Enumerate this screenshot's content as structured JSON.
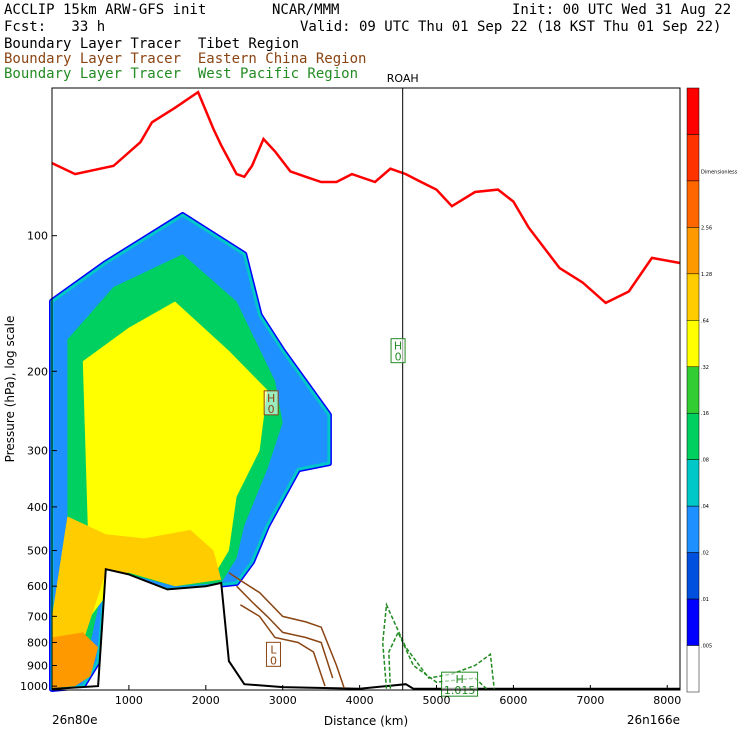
{
  "header": {
    "model": "ACCLIP 15km ARW-GFS init",
    "org": "NCAR/MMM",
    "init": "Init: 00 UTC Wed 31 Aug 22",
    "fcst": "Fcst:   33 h",
    "valid": "Valid: 09 UTC Thu 01 Sep 22 (18 KST Thu 01 Sep 22)"
  },
  "chart_data": {
    "type": "area",
    "title": "Boundary Layer Tracer Tibet Region / Eastern China Region / West Pacific Region",
    "series": [
      {
        "name": "Boundary Layer Tracer  Tibet Region",
        "color": "#000000",
        "style": "shaded"
      },
      {
        "name": "Boundary Layer Tracer  Eastern China Region",
        "color": "#8b4513",
        "style": "contour"
      },
      {
        "name": "Boundary Layer Tracer  West Pacific Region",
        "color": "#228b22",
        "style": "dashed contour"
      }
    ],
    "xlabel": "Distance (km)",
    "ylabel": "Pressure (hPa), log scale",
    "x_ticks": [
      "1000",
      "2000",
      "3000",
      "4000",
      "5000",
      "6000",
      "7000",
      "8000"
    ],
    "y_ticks": [
      "100",
      "200",
      "300",
      "400",
      "500",
      "600",
      "700",
      "800",
      "900",
      "1000"
    ],
    "xlim": [
      0,
      8166
    ],
    "ylim": [
      1020,
      47
    ],
    "x_end_labels": {
      "left": "26n80e",
      "right": "26n166e"
    },
    "marker_label": "ROAH",
    "marker_x": 4560,
    "colorbar": {
      "labels": [
        ".005",
        ".01",
        ".02",
        ".04",
        ".08",
        ".16",
        ".32",
        ".64",
        "1.28",
        "2.56",
        "Dimensionless"
      ],
      "colors": [
        "#ffffff",
        "#0000ff",
        "#0050e0",
        "#1e90ff",
        "#00c8c8",
        "#00d060",
        "#32cd32",
        "#ffff00",
        "#ffcc00",
        "#ff9900",
        "#ff6600",
        "#ff3300",
        "#ff0000"
      ]
    },
    "tropopause_color": "#ff0000",
    "surface_color": "#000000",
    "tropopause_hpa": [
      [
        0,
        69
      ],
      [
        300,
        73
      ],
      [
        800,
        70
      ],
      [
        1150,
        62
      ],
      [
        1300,
        56
      ],
      [
        1600,
        52
      ],
      [
        1900,
        48
      ],
      [
        2100,
        58
      ],
      [
        2200,
        63
      ],
      [
        2400,
        73
      ],
      [
        2500,
        74
      ],
      [
        2600,
        70
      ],
      [
        2750,
        61
      ],
      [
        2900,
        65
      ],
      [
        3100,
        72
      ],
      [
        3300,
        74
      ],
      [
        3500,
        76
      ],
      [
        3700,
        76
      ],
      [
        3900,
        73
      ],
      [
        4200,
        76
      ],
      [
        4400,
        71
      ],
      [
        4600,
        73
      ],
      [
        4800,
        76
      ],
      [
        5000,
        79
      ],
      [
        5200,
        86
      ],
      [
        5500,
        80
      ],
      [
        5800,
        79
      ],
      [
        6000,
        84
      ],
      [
        6200,
        96
      ],
      [
        6600,
        118
      ],
      [
        6900,
        127
      ],
      [
        7200,
        141
      ],
      [
        7500,
        133
      ],
      [
        7800,
        112
      ],
      [
        8166,
        115
      ]
    ],
    "surface_hpa": [
      [
        0,
        1015
      ],
      [
        600,
        1000
      ],
      [
        700,
        550
      ],
      [
        1000,
        565
      ],
      [
        1500,
        610
      ],
      [
        2000,
        600
      ],
      [
        2200,
        590
      ],
      [
        2300,
        880
      ],
      [
        2500,
        990
      ],
      [
        3000,
        1005
      ],
      [
        4000,
        1013
      ],
      [
        4600,
        990
      ],
      [
        4700,
        1013
      ],
      [
        8166,
        1013
      ]
    ],
    "tracer_zones": [
      {
        "level": 0.08,
        "points": [
          [
            0,
            140
          ],
          [
            700,
            115
          ],
          [
            1700,
            90
          ],
          [
            2500,
            110
          ],
          [
            2700,
            150
          ],
          [
            3000,
            180
          ],
          [
            3600,
            250
          ],
          [
            3600,
            320
          ],
          [
            3200,
            330
          ],
          [
            2800,
            440
          ],
          [
            2600,
            530
          ],
          [
            2400,
            590
          ],
          [
            2000,
            600
          ],
          [
            1500,
            610
          ],
          [
            1000,
            570
          ],
          [
            700,
            560
          ],
          [
            600,
            880
          ],
          [
            400,
            1000
          ],
          [
            0,
            1015
          ]
        ]
      },
      {
        "level": 0.16,
        "points": [
          [
            200,
            170
          ],
          [
            800,
            130
          ],
          [
            1700,
            110
          ],
          [
            2400,
            140
          ],
          [
            2900,
            210
          ],
          [
            3000,
            260
          ],
          [
            2800,
            330
          ],
          [
            2500,
            440
          ],
          [
            2400,
            520
          ],
          [
            2200,
            590
          ],
          [
            1600,
            600
          ],
          [
            1000,
            565
          ],
          [
            700,
            560
          ],
          [
            500,
            800
          ],
          [
            200,
            900
          ]
        ]
      },
      {
        "level": 0.32,
        "points": [
          [
            400,
            190
          ],
          [
            1000,
            160
          ],
          [
            1600,
            140
          ],
          [
            2300,
            180
          ],
          [
            2800,
            220
          ],
          [
            2700,
            300
          ],
          [
            2400,
            380
          ],
          [
            2300,
            500
          ],
          [
            2100,
            570
          ],
          [
            1500,
            590
          ],
          [
            1000,
            555
          ],
          [
            800,
            600
          ],
          [
            500,
            700
          ]
        ]
      },
      {
        "level": 0.64,
        "points": [
          [
            200,
            420
          ],
          [
            700,
            460
          ],
          [
            1200,
            470
          ],
          [
            1800,
            450
          ],
          [
            2100,
            500
          ],
          [
            2200,
            580
          ],
          [
            1600,
            600
          ],
          [
            1000,
            560
          ],
          [
            700,
            560
          ],
          [
            400,
            800
          ],
          [
            0,
            1010
          ],
          [
            0,
            700
          ]
        ]
      },
      {
        "level": 1.28,
        "points": [
          [
            0,
            780
          ],
          [
            400,
            760
          ],
          [
            600,
            820
          ],
          [
            500,
            950
          ],
          [
            300,
            1000
          ],
          [
            0,
            1010
          ]
        ]
      }
    ],
    "highs_lows": [
      {
        "label": "H",
        "value": "0",
        "x": 4500,
        "p": 180
      },
      {
        "label": "H",
        "value": "0",
        "x": 2850,
        "p": 235
      },
      {
        "label": "L",
        "value": "0",
        "x": 2880,
        "p": 850
      },
      {
        "label": "H",
        "value": "1.015",
        "x": 5300,
        "p": 990
      }
    ]
  }
}
